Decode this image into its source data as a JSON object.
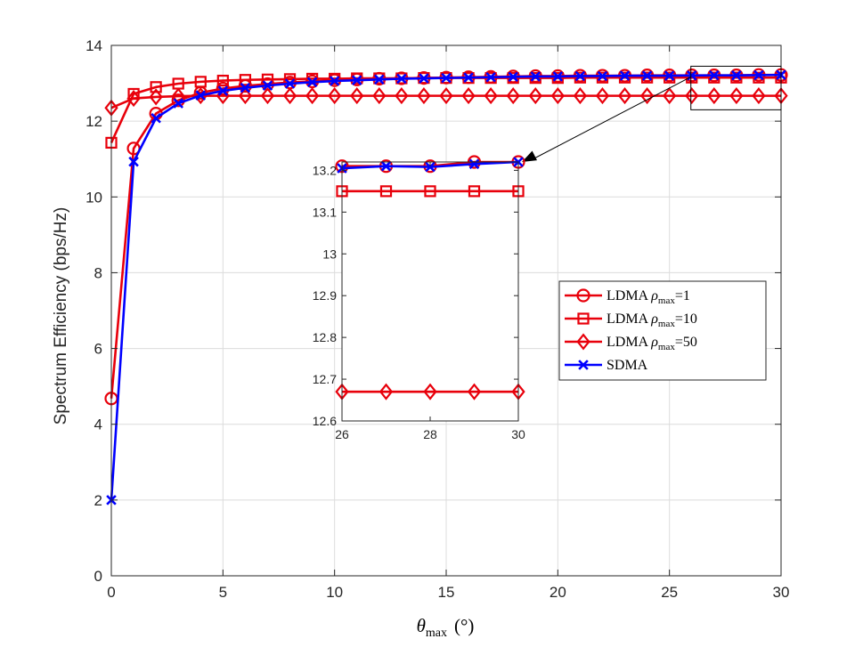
{
  "chart_data": {
    "type": "line",
    "xlabel_symbol": "θ",
    "xlabel_sub": "max",
    "xlabel_unit": "(°)",
    "ylabel": "Spectrum Efficiency (bps/Hz)",
    "xlim": [
      0,
      30
    ],
    "ylim": [
      0,
      14
    ],
    "xticks": [
      0,
      5,
      10,
      15,
      20,
      25,
      30
    ],
    "yticks": [
      0,
      2,
      4,
      6,
      8,
      10,
      12,
      14
    ],
    "grid": true,
    "legend_position": "center-right",
    "x": [
      0,
      1,
      2,
      3,
      4,
      5,
      6,
      7,
      8,
      9,
      10,
      11,
      12,
      13,
      14,
      15,
      16,
      17,
      18,
      19,
      20,
      21,
      22,
      23,
      24,
      25,
      26,
      27,
      28,
      29,
      30
    ],
    "series": [
      {
        "name": "LDMA ρmax=1",
        "legend_prefix": "LDMA ",
        "legend_rho": "ρ",
        "legend_sub": "max",
        "legend_suffix": "=1",
        "color": "#e8000b",
        "marker": "circle",
        "values": [
          4.68,
          11.28,
          12.2,
          12.55,
          12.75,
          12.86,
          12.93,
          12.98,
          13.02,
          13.05,
          13.08,
          13.1,
          13.12,
          13.13,
          13.14,
          13.15,
          13.16,
          13.17,
          13.18,
          13.19,
          13.19,
          13.2,
          13.2,
          13.2,
          13.21,
          13.21,
          13.21,
          13.21,
          13.21,
          13.22,
          13.22
        ]
      },
      {
        "name": "LDMA ρmax=10",
        "legend_prefix": "LDMA ",
        "legend_rho": "ρ",
        "legend_sub": "max",
        "legend_suffix": "=10",
        "color": "#e8000b",
        "marker": "square",
        "values": [
          11.43,
          12.72,
          12.9,
          12.99,
          13.04,
          13.07,
          13.09,
          13.1,
          13.11,
          13.12,
          13.12,
          13.13,
          13.13,
          13.13,
          13.14,
          13.14,
          13.14,
          13.14,
          13.14,
          13.14,
          13.14,
          13.15,
          13.15,
          13.15,
          13.15,
          13.15,
          13.15,
          13.15,
          13.15,
          13.15,
          13.15
        ]
      },
      {
        "name": "LDMA ρmax=50",
        "legend_prefix": "LDMA ",
        "legend_rho": "ρ",
        "legend_sub": "max",
        "legend_suffix": "=50",
        "color": "#e8000b",
        "marker": "diamond",
        "values": [
          12.35,
          12.6,
          12.64,
          12.66,
          12.67,
          12.67,
          12.67,
          12.67,
          12.67,
          12.67,
          12.67,
          12.67,
          12.67,
          12.67,
          12.67,
          12.67,
          12.67,
          12.67,
          12.67,
          12.67,
          12.67,
          12.67,
          12.67,
          12.67,
          12.67,
          12.67,
          12.67,
          12.67,
          12.67,
          12.67,
          12.67
        ]
      },
      {
        "name": "SDMA",
        "legend_prefix": "SDMA",
        "legend_rho": "",
        "legend_sub": "",
        "legend_suffix": "",
        "color": "#0000ff",
        "marker": "x",
        "values": [
          2.0,
          10.93,
          12.08,
          12.47,
          12.68,
          12.8,
          12.88,
          12.94,
          12.99,
          13.03,
          13.06,
          13.08,
          13.1,
          13.12,
          13.13,
          13.14,
          13.15,
          13.16,
          13.17,
          13.18,
          13.18,
          13.19,
          13.19,
          13.2,
          13.2,
          13.2,
          13.205,
          13.21,
          13.208,
          13.215,
          13.22
        ]
      }
    ],
    "inset": {
      "xlim": [
        26,
        30
      ],
      "ylim": [
        12.6,
        13.22
      ],
      "xticks": [
        26,
        28,
        30
      ],
      "yticks": [
        12.6,
        12.7,
        12.8,
        12.9,
        13,
        13.1,
        13.2
      ],
      "zoom_box_x": [
        26,
        30
      ],
      "zoom_box_y": [
        12.3,
        13.45
      ]
    }
  }
}
